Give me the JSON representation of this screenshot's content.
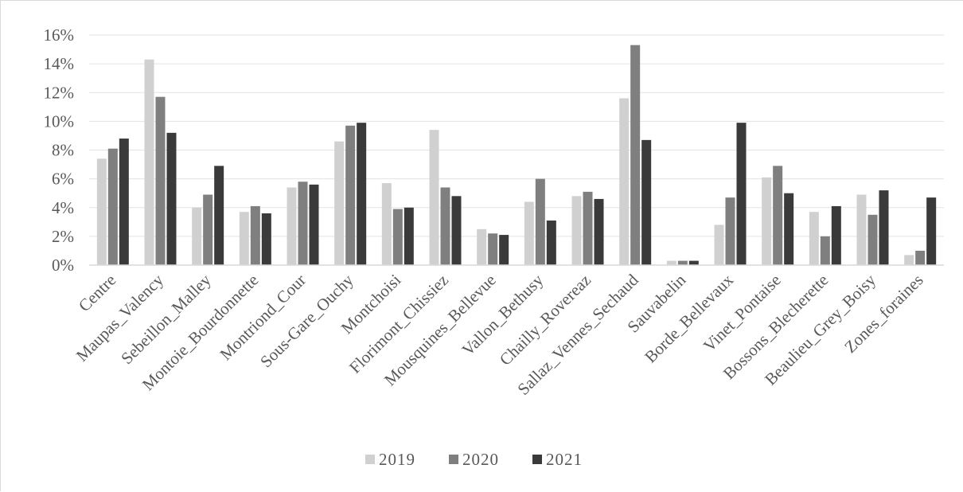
{
  "chart_data": {
    "type": "bar",
    "title": "",
    "xlabel": "",
    "ylabel": "",
    "ylim": [
      0,
      0.16
    ],
    "y_ticks": [
      "0%",
      "2%",
      "4%",
      "6%",
      "8%",
      "10%",
      "12%",
      "14%",
      "16%"
    ],
    "y_tick_values": [
      0,
      0.02,
      0.04,
      0.06,
      0.08,
      0.1,
      0.12,
      0.14,
      0.16
    ],
    "grid": true,
    "legend_position": "bottom",
    "categories": [
      "Centre",
      "Maupas_Valency",
      "Sebeillon_Malley",
      "Montoie_Bourdonnette",
      "Montriond_Cour",
      "Sous-Gare_Ouchy",
      "Montchoisi",
      "Florimont_Chissiez",
      "Mousquines_Bellevue",
      "Vallon_Bethusy",
      "Chailly_Rovereaz",
      "Sallaz_Vennes_Sechaud",
      "Sauvabelin",
      "Borde_Bellevaux",
      "Vinet_Pontaise",
      "Bossons_Blecherette",
      "Beaulieu_Grey_Boisy",
      "Zones_foraines"
    ],
    "series": [
      {
        "name": "2019",
        "color": "#d0d0d0",
        "values": [
          0.074,
          0.143,
          0.04,
          0.037,
          0.054,
          0.086,
          0.057,
          0.094,
          0.025,
          0.044,
          0.048,
          0.116,
          0.003,
          0.028,
          0.061,
          0.037,
          0.049,
          0.007
        ]
      },
      {
        "name": "2020",
        "color": "#7f7f7f",
        "values": [
          0.081,
          0.117,
          0.049,
          0.041,
          0.058,
          0.097,
          0.039,
          0.054,
          0.022,
          0.06,
          0.051,
          0.153,
          0.003,
          0.047,
          0.069,
          0.02,
          0.035,
          0.01
        ]
      },
      {
        "name": "2021",
        "color": "#3a3a3a",
        "values": [
          0.088,
          0.092,
          0.069,
          0.036,
          0.056,
          0.099,
          0.04,
          0.048,
          0.021,
          0.031,
          0.046,
          0.087,
          0.003,
          0.099,
          0.05,
          0.041,
          0.052,
          0.047
        ]
      }
    ]
  }
}
